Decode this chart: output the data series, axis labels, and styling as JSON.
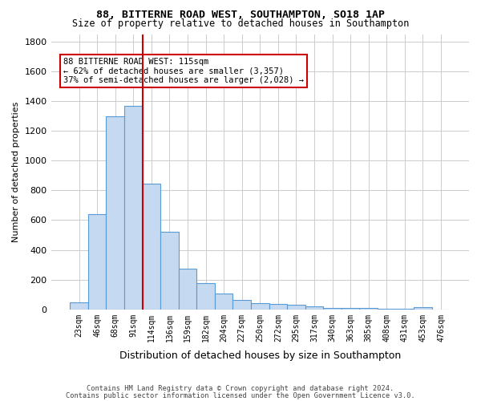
{
  "title1": "88, BITTERNE ROAD WEST, SOUTHAMPTON, SO18 1AP",
  "title2": "Size of property relative to detached houses in Southampton",
  "xlabel": "Distribution of detached houses by size in Southampton",
  "ylabel": "Number of detached properties",
  "footer1": "Contains HM Land Registry data © Crown copyright and database right 2024.",
  "footer2": "Contains public sector information licensed under the Open Government Licence v3.0.",
  "annotation_line1": "88 BITTERNE ROAD WEST: 115sqm",
  "annotation_line2": "← 62% of detached houses are smaller (3,357)",
  "annotation_line3": "37% of semi-detached houses are larger (2,028) →",
  "bar_color": "#c5d9f0",
  "bar_edge_color": "#5b9bd5",
  "vline_color": "#cc0000",
  "bins": [
    "23sqm",
    "46sqm",
    "68sqm",
    "91sqm",
    "114sqm",
    "136sqm",
    "159sqm",
    "182sqm",
    "204sqm",
    "227sqm",
    "250sqm",
    "272sqm",
    "295sqm",
    "317sqm",
    "340sqm",
    "363sqm",
    "385sqm",
    "408sqm",
    "431sqm",
    "453sqm",
    "476sqm"
  ],
  "values": [
    50,
    640,
    1300,
    1370,
    845,
    520,
    275,
    175,
    105,
    65,
    40,
    35,
    30,
    20,
    10,
    10,
    10,
    5,
    5,
    15,
    0
  ],
  "ylim": [
    0,
    1850
  ],
  "yticks": [
    0,
    200,
    400,
    600,
    800,
    1000,
    1200,
    1400,
    1600,
    1800
  ],
  "bg_color": "#ffffff",
  "grid_color": "#cccccc"
}
